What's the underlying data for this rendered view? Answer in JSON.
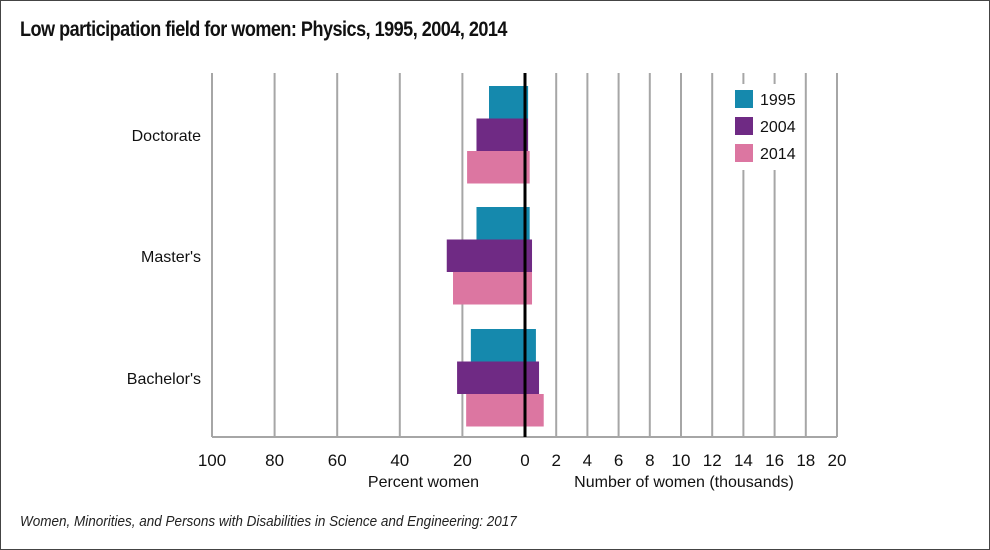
{
  "title": "Low participation field for women: Physics, 1995, 2004, 2014",
  "footer": "Women, Minorities, and Persons with Disabilities in Science and Engineering: 2017",
  "chart_data": {
    "type": "bar",
    "orientation": "horizontal",
    "layout": "back-to-back",
    "title": "Low participation field for women: Physics, 1995, 2004, 2014",
    "categories": [
      "Doctorate",
      "Master's",
      "Bachelor's"
    ],
    "legend": {
      "placement": "top-right",
      "entries": [
        "1995",
        "2004",
        "2014"
      ]
    },
    "colors": {
      "1995": "#1589ad",
      "2004": "#6f2a84",
      "2014": "#dc76a1",
      "zero_line": "#000000",
      "grid": "#a6a6a6"
    },
    "left_axis": {
      "label": "Percent women",
      "range": [
        100,
        0
      ],
      "ticks": [
        "100",
        "80",
        "60",
        "40",
        "20",
        "0"
      ],
      "series": [
        {
          "name": "1995",
          "values": [
            11.5,
            15.5,
            17.3
          ]
        },
        {
          "name": "2004",
          "values": [
            15.5,
            25.0,
            21.7
          ]
        },
        {
          "name": "2014",
          "values": [
            18.5,
            23.0,
            18.8
          ]
        }
      ]
    },
    "right_axis": {
      "label": "Number of women (thousands)",
      "range": [
        0,
        20
      ],
      "ticks": [
        "0",
        "2",
        "4",
        "6",
        "8",
        "10",
        "12",
        "14",
        "16",
        "18",
        "20"
      ],
      "series": [
        {
          "name": "1995",
          "values": [
            0.2,
            0.3,
            0.7
          ]
        },
        {
          "name": "2004",
          "values": [
            0.2,
            0.45,
            0.9
          ]
        },
        {
          "name": "2014",
          "values": [
            0.3,
            0.45,
            1.2
          ]
        }
      ]
    },
    "grid": true
  }
}
